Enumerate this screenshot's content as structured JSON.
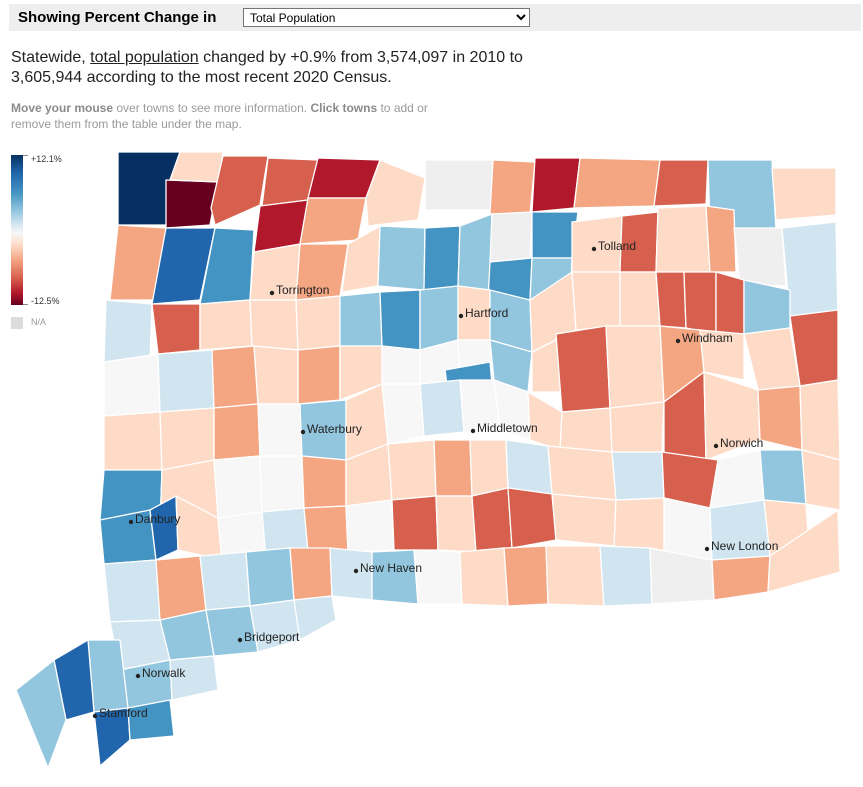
{
  "header": {
    "label": "Showing Percent Change in",
    "select_value": "Total Population",
    "select_options": [
      "Total Population"
    ]
  },
  "summary": {
    "prefix": "Statewide, ",
    "link": "total population",
    "rest": " changed by +0.9% from 3,574,097 in 2010 to 3,605,944 according to the most recent 2020 Census."
  },
  "hint": {
    "bold1": "Move your mouse",
    "text1": " over towns to see more information. ",
    "bold2": "Click towns",
    "text2": " to add or remove them from the table under the map."
  },
  "legend": {
    "max_label": "+12.1%",
    "min_label": "-12.5%",
    "na_label": "N/A",
    "colors": [
      "#053061",
      "#2166ac",
      "#4393c3",
      "#92c5de",
      "#d1e5f0",
      "#f7f7f7",
      "#fddbc7",
      "#f4a582",
      "#d6604d",
      "#b2182b",
      "#67001f"
    ]
  },
  "cities": [
    {
      "name": "Torrington"
    },
    {
      "name": "Hartford"
    },
    {
      "name": "Tolland"
    },
    {
      "name": "Windham"
    },
    {
      "name": "Waterbury"
    },
    {
      "name": "Middletown"
    },
    {
      "name": "Norwich"
    },
    {
      "name": "Danbury"
    },
    {
      "name": "New Haven"
    },
    {
      "name": "New London"
    },
    {
      "name": "Bridgeport"
    },
    {
      "name": "Norwalk"
    },
    {
      "name": "Stamford"
    }
  ]
}
